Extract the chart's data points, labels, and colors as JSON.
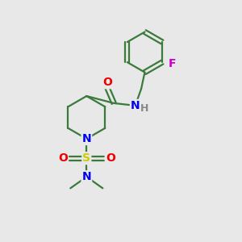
{
  "bg_color": "#e8e8e8",
  "bond_color": "#3a7a3a",
  "bond_width": 1.6,
  "atom_colors": {
    "C": "#3a7a3a",
    "N": "#0000ee",
    "O": "#ee0000",
    "S": "#cccc00",
    "F": "#cc00cc",
    "H": "#888888"
  },
  "font_size_atom": 10,
  "font_size_h": 9
}
